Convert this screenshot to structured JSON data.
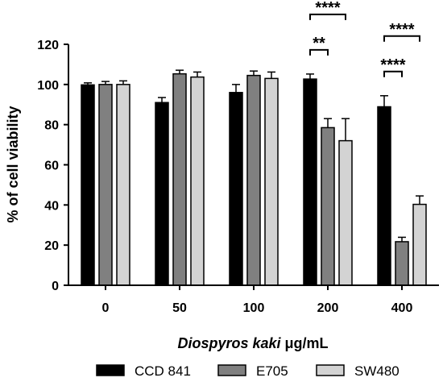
{
  "chart_data": {
    "type": "bar",
    "categories": [
      "0",
      "50",
      "100",
      "200",
      "400"
    ],
    "series": [
      {
        "name": "CCD 841",
        "color": "#000000",
        "values": [
          99.8,
          91,
          96,
          102.7,
          88.9
        ],
        "errors": [
          1.0,
          2.5,
          4.0,
          2.5,
          5.5
        ]
      },
      {
        "name": "E705",
        "color": "#808080",
        "values": [
          100,
          105.3,
          104.5,
          78.5,
          21.7
        ],
        "errors": [
          1.5,
          1.8,
          2.2,
          4.5,
          2.2
        ]
      },
      {
        "name": "SW480",
        "color": "#d3d3d3",
        "values": [
          100,
          103.7,
          103,
          72,
          40.3
        ],
        "errors": [
          1.8,
          2.5,
          3.2,
          11,
          4.2
        ]
      }
    ],
    "xlabel_italic": "Diospyros kaki",
    "xlabel_rest": " μg/mL",
    "ylabel": "% of cell viability",
    "ylim": [
      0,
      120
    ],
    "yticks": [
      "0",
      "20",
      "40",
      "60",
      "80",
      "100",
      "120"
    ],
    "grid": false,
    "legend_position": "bottom",
    "significance": [
      {
        "category": "200",
        "from_series": 0,
        "to_series": 1,
        "label": "**"
      },
      {
        "category": "200",
        "from_series": 0,
        "to_series": 2,
        "label": "****"
      },
      {
        "category": "400",
        "from_series": 0,
        "to_series": 1,
        "label": "****"
      },
      {
        "category": "400",
        "from_series": 0,
        "to_series": 2,
        "label": "****"
      }
    ]
  }
}
